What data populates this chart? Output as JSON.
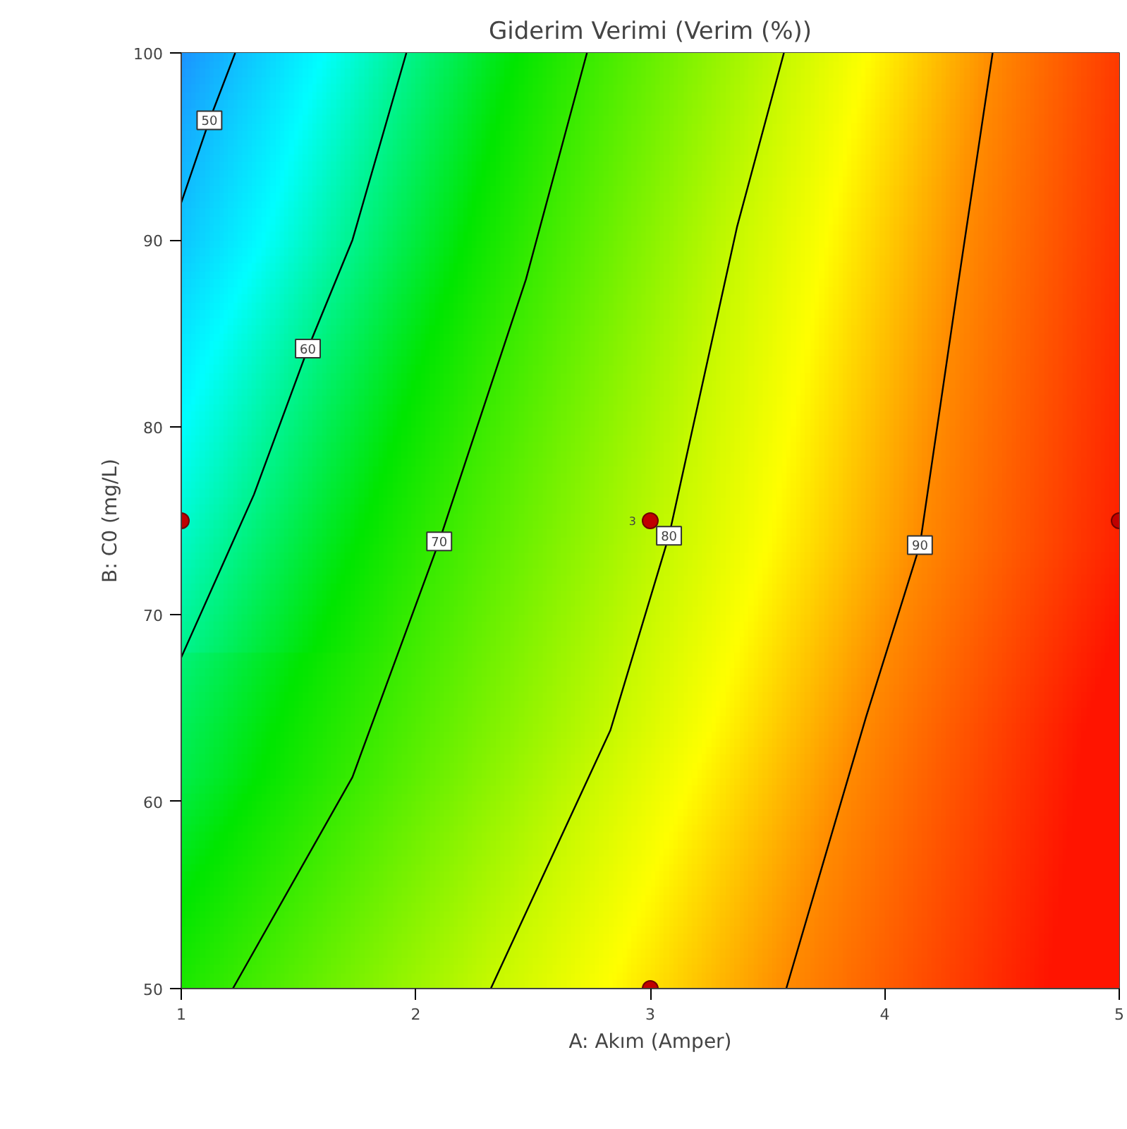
{
  "chart_data": {
    "type": "line",
    "title": "Giderim Verimi (Verim (%))",
    "xlabel": "A: Akım (Amper)",
    "ylabel": "B: C0 (mg/L)",
    "xlim": [
      1,
      5
    ],
    "ylim": [
      50,
      100
    ],
    "xticks": [
      1,
      2,
      3,
      4,
      5
    ],
    "yticks": [
      50,
      60,
      70,
      80,
      90,
      100
    ],
    "grid": false,
    "series": [
      {
        "name": "50",
        "color": "#000000",
        "type": "line",
        "x": [
          1,
          1.12,
          1.23
        ],
        "values": [
          92,
          96.4,
          100
        ]
      },
      {
        "name": "60",
        "color": "#000000",
        "type": "line",
        "x": [
          1,
          1.31,
          1.54,
          1.73,
          1.96
        ],
        "values": [
          67.7,
          76.4,
          84.2,
          90,
          100
        ]
      },
      {
        "name": "70",
        "color": "#000000",
        "type": "line",
        "x": [
          1.22,
          1.73,
          2.1,
          2.47,
          2.73
        ],
        "values": [
          50,
          61.3,
          73.9,
          87.9,
          100
        ]
      },
      {
        "name": "80",
        "color": "#000000",
        "type": "line",
        "x": [
          2.32,
          2.83,
          3.08,
          3.37,
          3.57
        ],
        "values": [
          50,
          63.8,
          74.2,
          90.7,
          100
        ]
      },
      {
        "name": "90",
        "color": "#000000",
        "type": "line",
        "x": [
          3.58,
          3.92,
          4.15,
          4.31,
          4.46
        ],
        "values": [
          50,
          64.5,
          73.7,
          87.4,
          100
        ]
      },
      {
        "color": "#c00000",
        "type": "scatter",
        "x": [
          1,
          3,
          5,
          3
        ],
        "values": [
          75,
          75,
          75,
          50
        ]
      }
    ],
    "annotations": [
      {
        "text": "3",
        "x": 3,
        "y": 75
      }
    ]
  }
}
